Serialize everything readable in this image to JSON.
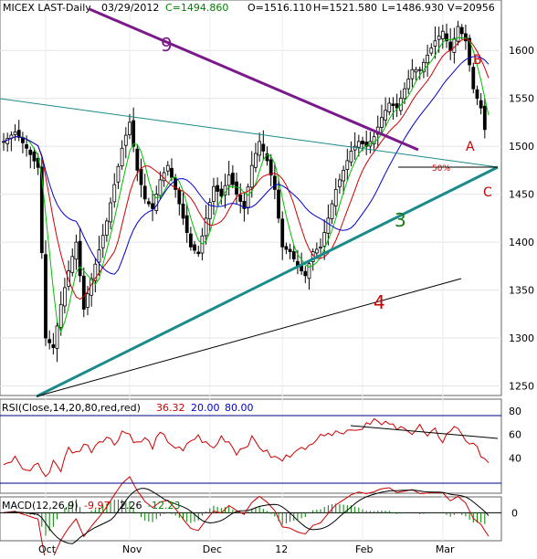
{
  "chart_data": [
    {
      "type": "candlestick",
      "title": "MICEX LAST-Daily",
      "header": {
        "symbol": "MICEX LAST-Daily",
        "date": "03/29/2012",
        "close": "C=1494.860",
        "open": "O=1516.110",
        "high": "H=1521.580",
        "low": "L=1486.930",
        "volume": "V=20956"
      },
      "x_ticks": [
        "Oct",
        "Nov",
        "Dec",
        "12",
        "Feb",
        "Mar"
      ],
      "y_ticks": [
        "1600",
        "1550",
        "1500",
        "1450",
        "1400",
        "1350",
        "1300",
        "1250"
      ],
      "ylim": [
        1240,
        1645
      ],
      "sessions": 127,
      "close_path": [
        [
          0,
          1505
        ],
        [
          3,
          1515
        ],
        [
          6,
          1498
        ],
        [
          9,
          1478
        ],
        [
          11,
          1300
        ],
        [
          13,
          1290
        ],
        [
          15,
          1335
        ],
        [
          17,
          1370
        ],
        [
          19,
          1400
        ],
        [
          21,
          1330
        ],
        [
          23,
          1362
        ],
        [
          25,
          1392
        ],
        [
          27,
          1422
        ],
        [
          29,
          1460
        ],
        [
          31,
          1498
        ],
        [
          33,
          1525
        ],
        [
          35,
          1475
        ],
        [
          37,
          1445
        ],
        [
          39,
          1435
        ],
        [
          41,
          1465
        ],
        [
          43,
          1480
        ],
        [
          45,
          1455
        ],
        [
          47,
          1425
        ],
        [
          49,
          1395
        ],
        [
          51,
          1388
        ],
        [
          53,
          1425
        ],
        [
          55,
          1458
        ],
        [
          57,
          1448
        ],
        [
          59,
          1470
        ],
        [
          61,
          1450
        ],
        [
          63,
          1435
        ],
        [
          65,
          1480
        ],
        [
          67,
          1505
        ],
        [
          69,
          1485
        ],
        [
          71,
          1455
        ],
        [
          73,
          1395
        ],
        [
          75,
          1390
        ],
        [
          77,
          1375
        ],
        [
          79,
          1365
        ],
        [
          81,
          1390
        ],
        [
          83,
          1395
        ],
        [
          85,
          1425
        ],
        [
          87,
          1455
        ],
        [
          89,
          1475
        ],
        [
          91,
          1495
        ],
        [
          93,
          1505
        ],
        [
          95,
          1500
        ],
        [
          97,
          1510
        ],
        [
          99,
          1530
        ],
        [
          101,
          1545
        ],
        [
          103,
          1540
        ],
        [
          105,
          1560
        ],
        [
          107,
          1580
        ],
        [
          109,
          1580
        ],
        [
          111,
          1595
        ],
        [
          113,
          1610
        ],
        [
          115,
          1620
        ],
        [
          117,
          1600
        ],
        [
          119,
          1625
        ],
        [
          121,
          1610
        ],
        [
          123,
          1560
        ],
        [
          125,
          1540
        ],
        [
          127,
          1495
        ]
      ],
      "annotations": {
        "line9": "9",
        "line3": "3",
        "line4": "4",
        "point_a": "A",
        "point_b": "B",
        "point_c": "C",
        "retrace": "50%"
      }
    },
    {
      "type": "line",
      "title": "RSI(Close,14,20,80,red,red)",
      "values": {
        "last": "36.32",
        "lower": "20.00",
        "upper": "80.00"
      },
      "y_ticks": [
        "80",
        "60",
        "40"
      ],
      "ylim": [
        10,
        90
      ],
      "rsi_path": [
        [
          0,
          32
        ],
        [
          3,
          40
        ],
        [
          6,
          28
        ],
        [
          9,
          36
        ],
        [
          11,
          22
        ],
        [
          13,
          38
        ],
        [
          15,
          30
        ],
        [
          17,
          48
        ],
        [
          19,
          44
        ],
        [
          21,
          52
        ],
        [
          23,
          47
        ],
        [
          25,
          55
        ],
        [
          27,
          58
        ],
        [
          29,
          52
        ],
        [
          31,
          63
        ],
        [
          33,
          60
        ],
        [
          35,
          52
        ],
        [
          37,
          56
        ],
        [
          39,
          50
        ],
        [
          41,
          60
        ],
        [
          43,
          55
        ],
        [
          45,
          49
        ],
        [
          47,
          45
        ],
        [
          49,
          55
        ],
        [
          51,
          58
        ],
        [
          53,
          52
        ],
        [
          55,
          48
        ],
        [
          57,
          58
        ],
        [
          59,
          54
        ],
        [
          61,
          45
        ],
        [
          63,
          50
        ],
        [
          65,
          56
        ],
        [
          67,
          50
        ],
        [
          69,
          44
        ],
        [
          71,
          40
        ],
        [
          73,
          38
        ],
        [
          75,
          43
        ],
        [
          77,
          50
        ],
        [
          79,
          45
        ],
        [
          81,
          55
        ],
        [
          83,
          62
        ],
        [
          85,
          58
        ],
        [
          87,
          66
        ],
        [
          89,
          60
        ],
        [
          91,
          66
        ],
        [
          93,
          64
        ],
        [
          95,
          70
        ],
        [
          97,
          73
        ],
        [
          99,
          67
        ],
        [
          101,
          70
        ],
        [
          103,
          63
        ],
        [
          105,
          68
        ],
        [
          107,
          61
        ],
        [
          109,
          67
        ],
        [
          111,
          57
        ],
        [
          113,
          63
        ],
        [
          115,
          55
        ],
        [
          117,
          64
        ],
        [
          119,
          66
        ],
        [
          121,
          56
        ],
        [
          123,
          50
        ],
        [
          125,
          44
        ],
        [
          127,
          37
        ]
      ]
    },
    {
      "type": "line",
      "title": "MACD(12,26,9)",
      "values": {
        "macd": "-9.97",
        "signal": "2.26",
        "hist": "-12.23"
      },
      "y_ticks": [
        "0"
      ],
      "ylim": [
        -20,
        10
      ]
    }
  ]
}
